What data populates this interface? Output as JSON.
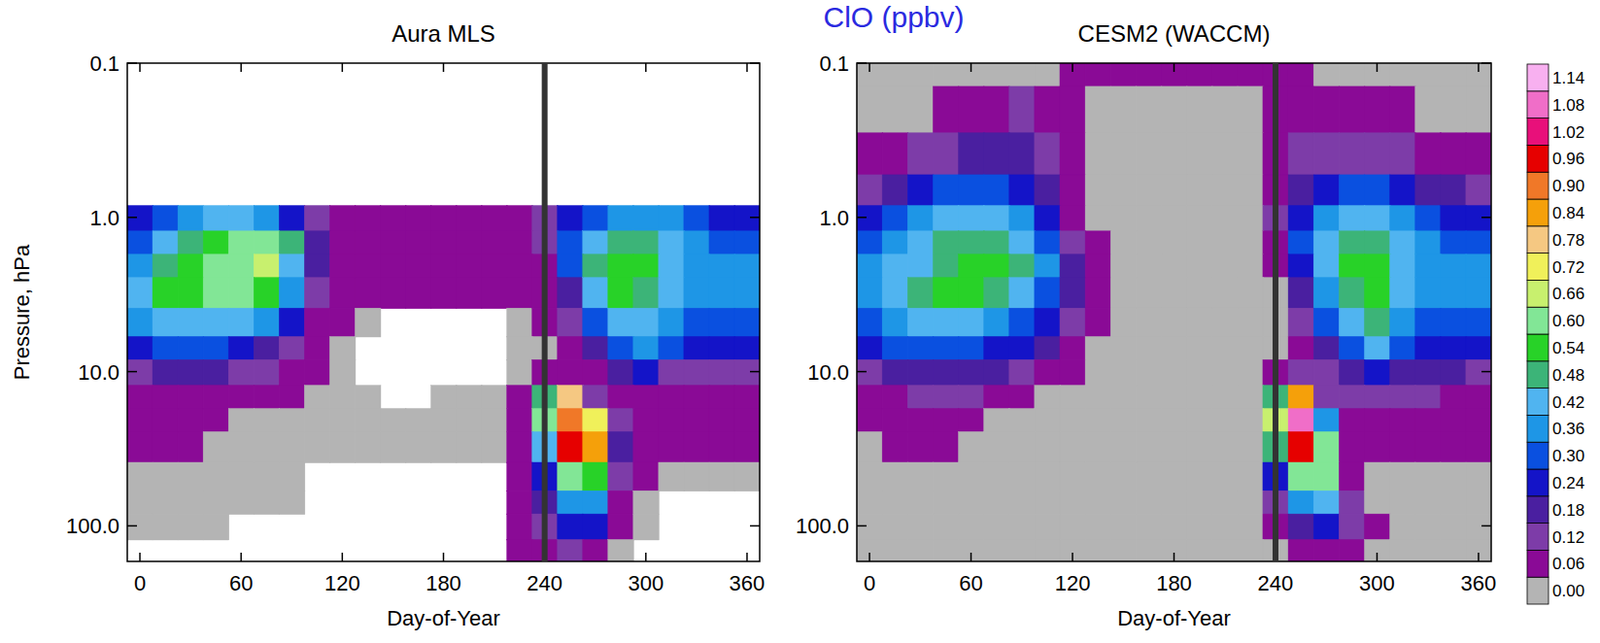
{
  "title": "ClO (ppbv)",
  "colorbar": {
    "ticks": [
      {
        "value": 0,
        "label": "0.00"
      },
      {
        "value": 0.06,
        "label": "0.06"
      },
      {
        "value": 0.12,
        "label": "0.12"
      },
      {
        "value": 0.18,
        "label": "0.18"
      },
      {
        "value": 0.24,
        "label": "0.24"
      },
      {
        "value": 0.3,
        "label": "0.30"
      },
      {
        "value": 0.36,
        "label": "0.36"
      },
      {
        "value": 0.42,
        "label": "0.42"
      },
      {
        "value": 0.48,
        "label": "0.48"
      },
      {
        "value": 0.54,
        "label": "0.54"
      },
      {
        "value": 0.6,
        "label": "0.60"
      },
      {
        "value": 0.66,
        "label": "0.66"
      },
      {
        "value": 0.72,
        "label": "0.72"
      },
      {
        "value": 0.78,
        "label": "0.78"
      },
      {
        "value": 0.84,
        "label": "0.84"
      },
      {
        "value": 0.9,
        "label": "0.90"
      },
      {
        "value": 0.96,
        "label": "0.96"
      },
      {
        "value": 1.02,
        "label": "1.02"
      },
      {
        "value": 1.08,
        "label": "1.08"
      },
      {
        "value": 1.14,
        "label": "1.14"
      }
    ],
    "colors": [
      "#b4b4b4",
      "#8a0a96",
      "#7d3ca8",
      "#4a1fa0",
      "#1414c8",
      "#0a50e0",
      "#1e96e6",
      "#50b4f0",
      "#3cb478",
      "#28d228",
      "#82e696",
      "#c8f06e",
      "#f0f05a",
      "#f5c882",
      "#f5a00a",
      "#f07828",
      "#e60000",
      "#e8107a",
      "#f06ec8",
      "#f8b0f0"
    ]
  },
  "chart_data": [
    {
      "type": "heatmap",
      "title": "Aura MLS",
      "xlabel": "Day-of-Year",
      "ylabel": "Pressure, hPa",
      "log": "y",
      "xlim": [
        -7.5,
        367.5
      ],
      "xticks": [
        0,
        60,
        120,
        180,
        240,
        300,
        360
      ],
      "ylim": [
        170,
        0.1
      ],
      "yticks": [
        0.1,
        {
          "value": 1,
          "label": "1.0"
        },
        {
          "value": 10,
          "label": "10.0"
        },
        {
          "value": 100,
          "label": "100.0"
        }
      ],
      "vline": 240,
      "x": [
        0,
        15,
        30,
        45,
        60,
        75,
        90,
        105,
        120,
        135,
        150,
        165,
        180,
        195,
        210,
        225,
        240,
        255,
        270,
        285,
        300,
        315,
        330,
        345,
        360
      ],
      "y": [
        0.1,
        0.2,
        0.4,
        0.7,
        1,
        1.5,
        2,
        3,
        5,
        7,
        10,
        15,
        20,
        30,
        50,
        70,
        100,
        150
      ],
      "values": [
        [
          null,
          null,
          null,
          null,
          null,
          null,
          null,
          null,
          null,
          null,
          null,
          null,
          null,
          null,
          null,
          null,
          null,
          null,
          null,
          null,
          null,
          null,
          null,
          null,
          null
        ],
        [
          null,
          null,
          null,
          null,
          null,
          null,
          null,
          null,
          null,
          null,
          null,
          null,
          null,
          null,
          null,
          null,
          null,
          null,
          null,
          null,
          null,
          null,
          null,
          null,
          null
        ],
        [
          null,
          null,
          null,
          null,
          null,
          null,
          null,
          null,
          null,
          null,
          null,
          null,
          null,
          null,
          null,
          null,
          null,
          null,
          null,
          null,
          null,
          null,
          null,
          null,
          null
        ],
        [
          null,
          null,
          null,
          null,
          null,
          null,
          null,
          null,
          null,
          null,
          null,
          null,
          null,
          null,
          null,
          null,
          null,
          null,
          null,
          null,
          null,
          null,
          null,
          null,
          null
        ],
        [
          0.24,
          0.3,
          0.36,
          0.42,
          0.42,
          0.36,
          0.24,
          0.12,
          0.06,
          0.06,
          0.06,
          0.06,
          0.06,
          0.06,
          0.06,
          0.06,
          0.12,
          0.24,
          0.3,
          0.36,
          0.36,
          0.36,
          0.3,
          0.24,
          0.24
        ],
        [
          0.3,
          0.42,
          0.48,
          0.54,
          0.6,
          0.6,
          0.48,
          0.18,
          0.06,
          0.06,
          0.06,
          0.06,
          0.06,
          0.06,
          0.06,
          0.06,
          0.12,
          0.3,
          0.42,
          0.48,
          0.48,
          0.42,
          0.36,
          0.3,
          0.3
        ],
        [
          0.36,
          0.48,
          0.54,
          0.6,
          0.6,
          0.66,
          0.42,
          0.18,
          0.06,
          0.06,
          0.06,
          0.06,
          0.06,
          0.06,
          0.06,
          0.06,
          0.06,
          0.3,
          0.48,
          0.54,
          0.54,
          0.42,
          0.36,
          0.36,
          0.36
        ],
        [
          0.42,
          0.54,
          0.54,
          0.6,
          0.6,
          0.54,
          0.36,
          0.12,
          0.06,
          0.06,
          0.06,
          0.06,
          0.06,
          0.06,
          0.06,
          0.06,
          0.06,
          0.18,
          0.42,
          0.54,
          0.48,
          0.42,
          0.36,
          0.36,
          0.36
        ],
        [
          0.36,
          0.42,
          0.42,
          0.42,
          0.42,
          0.36,
          0.24,
          0.06,
          0.06,
          0,
          null,
          null,
          null,
          null,
          null,
          0,
          0.06,
          0.12,
          0.3,
          0.42,
          0.42,
          0.36,
          0.3,
          0.3,
          0.3
        ],
        [
          0.24,
          0.3,
          0.3,
          0.3,
          0.24,
          0.18,
          0.12,
          0.06,
          0,
          null,
          null,
          null,
          null,
          null,
          null,
          0,
          0,
          0.06,
          0.18,
          0.3,
          0.36,
          0.3,
          0.24,
          0.24,
          0.24
        ],
        [
          0.12,
          0.18,
          0.18,
          0.18,
          0.12,
          0.12,
          0.06,
          0.06,
          0,
          null,
          null,
          null,
          null,
          null,
          null,
          0,
          0.06,
          0.06,
          0.06,
          0.18,
          0.24,
          0.12,
          0.12,
          0.12,
          0.12
        ],
        [
          0.06,
          0.06,
          0.06,
          0.06,
          0.06,
          0.06,
          0.06,
          0,
          0,
          0,
          null,
          null,
          0,
          0,
          0,
          0.06,
          0.48,
          0.78,
          0.12,
          0.06,
          0.06,
          0.06,
          0.06,
          0.06,
          0.06
        ],
        [
          0.06,
          0.06,
          0.06,
          0.06,
          0,
          0,
          0,
          0,
          0,
          0,
          0,
          0,
          0,
          0,
          0,
          0.06,
          0.6,
          0.9,
          0.72,
          0.12,
          0.06,
          0.06,
          0.06,
          0.06,
          0.06
        ],
        [
          0.06,
          0.06,
          0.06,
          0,
          0,
          0,
          0,
          0,
          0,
          0,
          0,
          0,
          0,
          0,
          0,
          0.06,
          0.42,
          0.96,
          0.84,
          0.18,
          0.06,
          0.06,
          0.06,
          0.06,
          0.06
        ],
        [
          0,
          0,
          0,
          0,
          0,
          0,
          0,
          null,
          null,
          null,
          null,
          null,
          null,
          null,
          null,
          0.06,
          0.24,
          0.6,
          0.54,
          0.12,
          0.06,
          0,
          0,
          0,
          0
        ],
        [
          0,
          0,
          0,
          0,
          0,
          0,
          0,
          null,
          null,
          null,
          null,
          null,
          null,
          null,
          null,
          0.06,
          0.18,
          0.36,
          0.36,
          0.06,
          0,
          null,
          null,
          null,
          null
        ],
        [
          0,
          0,
          0,
          0,
          null,
          null,
          null,
          null,
          null,
          null,
          null,
          null,
          null,
          null,
          null,
          0.06,
          0.12,
          0.24,
          0.24,
          0.06,
          0,
          null,
          null,
          null,
          null
        ],
        [
          null,
          null,
          null,
          null,
          null,
          null,
          null,
          null,
          null,
          null,
          null,
          null,
          null,
          null,
          null,
          0.06,
          0.06,
          0.12,
          0.06,
          0,
          null,
          null,
          null,
          null,
          null
        ]
      ]
    },
    {
      "type": "heatmap",
      "title": "CESM2 (WACCM)",
      "xlabel": "Day-of-Year",
      "log": "y",
      "xlim": [
        -7.5,
        367.5
      ],
      "xticks": [
        0,
        60,
        120,
        180,
        240,
        300,
        360
      ],
      "ylim": [
        170,
        0.1
      ],
      "yticks": [
        0.1,
        {
          "value": 1,
          "label": "1.0"
        },
        {
          "value": 10,
          "label": "10.0"
        },
        {
          "value": 100,
          "label": "100.0"
        }
      ],
      "vline": 240,
      "x": [
        0,
        15,
        30,
        45,
        60,
        75,
        90,
        105,
        120,
        135,
        150,
        165,
        180,
        195,
        210,
        225,
        240,
        255,
        270,
        285,
        300,
        315,
        330,
        345,
        360
      ],
      "y": [
        0.1,
        0.2,
        0.4,
        0.7,
        1,
        1.5,
        2,
        3,
        5,
        7,
        10,
        15,
        20,
        30,
        50,
        70,
        100,
        150
      ],
      "values": [
        [
          0,
          0,
          0,
          0,
          0,
          0,
          0,
          0,
          0.06,
          0.06,
          0.06,
          0.06,
          0.06,
          0.06,
          0.06,
          0.06,
          0.06,
          0.06,
          0,
          0,
          0,
          0,
          0,
          0,
          0
        ],
        [
          0,
          0,
          0,
          0.06,
          0.06,
          0.06,
          0.12,
          0.06,
          0.06,
          0,
          0,
          0,
          0,
          0,
          0,
          0,
          0.06,
          0.06,
          0.06,
          0.06,
          0.06,
          0.06,
          0,
          0,
          0
        ],
        [
          0.06,
          0.06,
          0.12,
          0.12,
          0.18,
          0.18,
          0.18,
          0.12,
          0.06,
          0,
          0,
          0,
          0,
          0,
          0,
          0,
          0.06,
          0.12,
          0.12,
          0.12,
          0.12,
          0.12,
          0.06,
          0.06,
          0.06
        ],
        [
          0.12,
          0.18,
          0.24,
          0.3,
          0.3,
          0.3,
          0.24,
          0.18,
          0.06,
          0,
          0,
          0,
          0,
          0,
          0,
          0,
          0.06,
          0.18,
          0.24,
          0.3,
          0.3,
          0.24,
          0.18,
          0.18,
          0.12
        ],
        [
          0.24,
          0.3,
          0.36,
          0.42,
          0.42,
          0.42,
          0.36,
          0.24,
          0.06,
          0,
          0,
          0,
          0,
          0,
          0,
          0,
          0.12,
          0.24,
          0.36,
          0.42,
          0.42,
          0.36,
          0.3,
          0.24,
          0.24
        ],
        [
          0.3,
          0.36,
          0.42,
          0.48,
          0.48,
          0.48,
          0.42,
          0.3,
          0.12,
          0.06,
          0,
          0,
          0,
          0,
          0,
          0,
          0.06,
          0.3,
          0.42,
          0.48,
          0.48,
          0.42,
          0.36,
          0.3,
          0.3
        ],
        [
          0.36,
          0.42,
          0.42,
          0.48,
          0.54,
          0.54,
          0.48,
          0.36,
          0.18,
          0.06,
          0,
          0,
          0,
          0,
          0,
          0,
          0.06,
          0.24,
          0.42,
          0.54,
          0.54,
          0.42,
          0.36,
          0.36,
          0.36
        ],
        [
          0.36,
          0.42,
          0.48,
          0.54,
          0.54,
          0.48,
          0.42,
          0.3,
          0.18,
          0.06,
          0,
          0,
          0,
          0,
          0,
          0,
          0,
          0.18,
          0.36,
          0.48,
          0.54,
          0.42,
          0.36,
          0.36,
          0.36
        ],
        [
          0.3,
          0.36,
          0.42,
          0.42,
          0.42,
          0.36,
          0.3,
          0.24,
          0.12,
          0.06,
          0,
          0,
          0,
          0,
          0,
          0,
          0,
          0.12,
          0.3,
          0.42,
          0.48,
          0.36,
          0.3,
          0.3,
          0.3
        ],
        [
          0.24,
          0.3,
          0.3,
          0.3,
          0.3,
          0.24,
          0.24,
          0.18,
          0.06,
          0,
          0,
          0,
          0,
          0,
          0,
          0,
          0,
          0.06,
          0.18,
          0.3,
          0.42,
          0.3,
          0.24,
          0.24,
          0.24
        ],
        [
          0.12,
          0.18,
          0.18,
          0.18,
          0.18,
          0.18,
          0.12,
          0.06,
          0.06,
          0,
          0,
          0,
          0,
          0,
          0,
          0,
          0.06,
          0.12,
          0.12,
          0.18,
          0.24,
          0.18,
          0.18,
          0.18,
          0.12
        ],
        [
          0.06,
          0.06,
          0.12,
          0.12,
          0.12,
          0.06,
          0.06,
          0,
          0,
          0,
          0,
          0,
          0,
          0,
          0,
          0,
          0.48,
          0.84,
          0.12,
          0.12,
          0.12,
          0.12,
          0.12,
          0.06,
          0.06
        ],
        [
          0.06,
          0.06,
          0.06,
          0.06,
          0.06,
          0,
          0,
          0,
          0,
          0,
          0,
          0,
          0,
          0,
          0,
          0,
          0.66,
          1.08,
          0.36,
          0.06,
          0.06,
          0.06,
          0.06,
          0.06,
          0.06
        ],
        [
          0,
          0.06,
          0.06,
          0.06,
          0,
          0,
          0,
          0,
          0,
          0,
          0,
          0,
          0,
          0,
          0,
          0,
          0.48,
          0.96,
          0.6,
          0.06,
          0.06,
          0.06,
          0.06,
          0.06,
          0.06
        ],
        [
          0,
          0,
          0,
          0,
          0,
          0,
          0,
          0,
          0,
          0,
          0,
          0,
          0,
          0,
          0,
          0,
          0.24,
          0.6,
          0.6,
          0.06,
          0,
          0,
          0,
          0,
          0
        ],
        [
          0,
          0,
          0,
          0,
          0,
          0,
          0,
          0,
          0,
          0,
          0,
          0,
          0,
          0,
          0,
          0,
          0.12,
          0.36,
          0.42,
          0.12,
          0,
          0,
          0,
          0,
          0
        ],
        [
          0,
          0,
          0,
          0,
          0,
          0,
          0,
          0,
          0,
          0,
          0,
          0,
          0,
          0,
          0,
          0,
          0.06,
          0.18,
          0.24,
          0.12,
          0.06,
          0,
          0,
          0,
          0
        ],
        [
          0,
          0,
          0,
          0,
          0,
          0,
          0,
          0,
          0,
          0,
          0,
          0,
          0,
          0,
          0,
          0,
          0,
          0.06,
          0.06,
          0.06,
          0,
          0,
          0,
          0,
          0
        ]
      ]
    }
  ]
}
